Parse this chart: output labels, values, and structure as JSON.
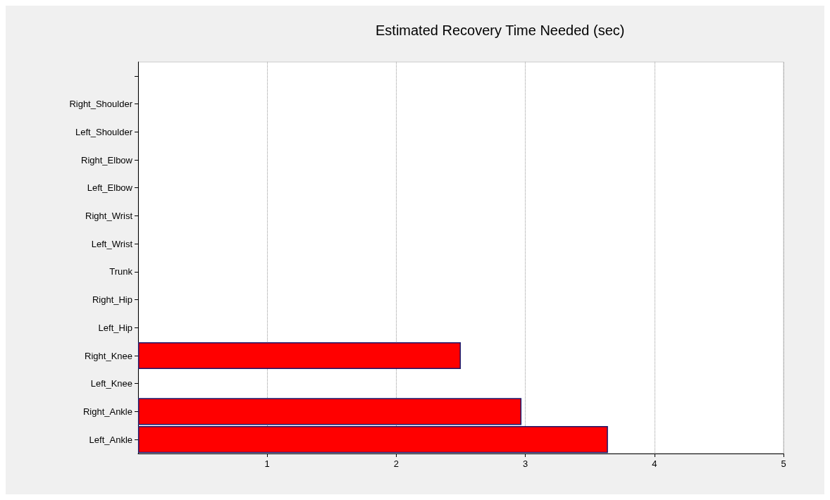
{
  "chart_data": {
    "type": "bar",
    "orientation": "horizontal",
    "title": "Estimated Recovery Time Needed (sec)",
    "categories": [
      null,
      "Right_Shoulder",
      "Left_Shoulder",
      "Right_Elbow",
      "Left_Elbow",
      "Right_Wrist",
      "Left_Wrist",
      "Trunk",
      "Right_Hip",
      "Left_Hip",
      "Right_Knee",
      "Left_Knee",
      "Right_Ankle",
      "Left_Ankle"
    ],
    "values": [
      null,
      null,
      null,
      null,
      null,
      null,
      null,
      null,
      null,
      null,
      2.5,
      null,
      2.97,
      3.64
    ],
    "color": "#ff0000",
    "xlim": [
      0,
      5
    ],
    "xticks": [
      1,
      2,
      3,
      4,
      5
    ],
    "grid": "x"
  }
}
